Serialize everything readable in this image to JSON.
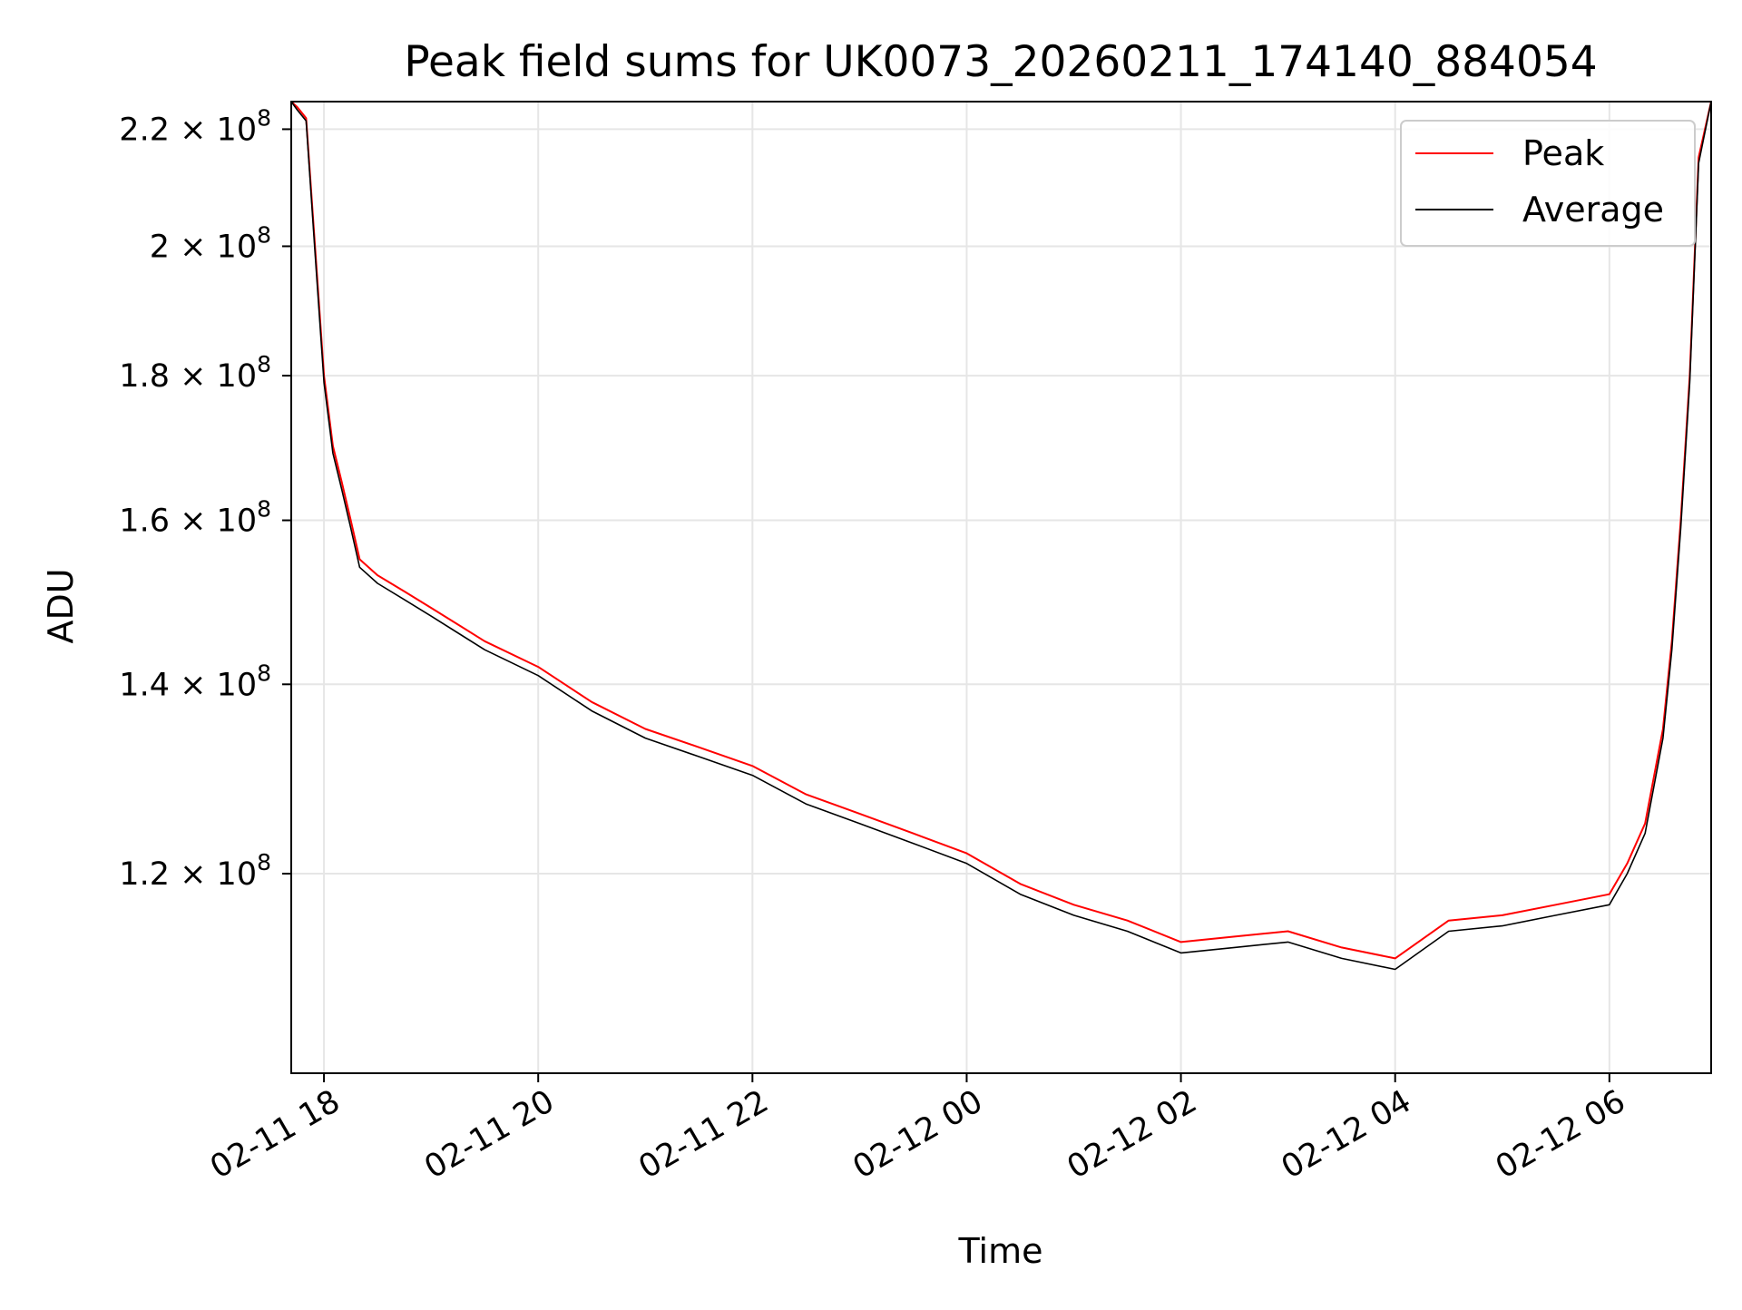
{
  "chart_data": {
    "type": "line",
    "title": "Peak field sums for UK0073_20260211_174140_884054",
    "xlabel": "Time",
    "ylabel": "ADU",
    "x_range": [
      "2026-02-11T17:41:40",
      "2026-02-12T06:57:00"
    ],
    "ylim": [
      102000000.0,
      225000000.0
    ],
    "yscale": "log",
    "grid": true,
    "legend_position": "top-right",
    "x_ticks": [
      {
        "value": "2026-02-11T18:00",
        "label": "02-11 18"
      },
      {
        "value": "2026-02-11T20:00",
        "label": "02-11 20"
      },
      {
        "value": "2026-02-11T22:00",
        "label": "02-11 22"
      },
      {
        "value": "2026-02-12T00:00",
        "label": "02-12 00"
      },
      {
        "value": "2026-02-12T02:00",
        "label": "02-12 02"
      },
      {
        "value": "2026-02-12T04:00",
        "label": "02-12 04"
      },
      {
        "value": "2026-02-12T06:00",
        "label": "02-12 06"
      }
    ],
    "y_ticks": [
      {
        "value": 120000000,
        "mantissa": "1.2",
        "exponent": "8"
      },
      {
        "value": 140000000,
        "mantissa": "1.4",
        "exponent": "8"
      },
      {
        "value": 160000000,
        "mantissa": "1.6",
        "exponent": "8"
      },
      {
        "value": 180000000,
        "mantissa": "1.8",
        "exponent": "8"
      },
      {
        "value": 200000000,
        "mantissa": "2",
        "exponent": "8"
      },
      {
        "value": 220000000,
        "mantissa": "2.2",
        "exponent": "8"
      }
    ],
    "x": [
      "2026-02-11T17:41:40",
      "2026-02-11T17:45",
      "2026-02-11T17:50",
      "2026-02-11T17:55",
      "2026-02-11T18:00",
      "2026-02-11T18:05",
      "2026-02-11T18:10",
      "2026-02-11T18:15",
      "2026-02-11T18:20",
      "2026-02-11T18:30",
      "2026-02-11T18:45",
      "2026-02-11T19:00",
      "2026-02-11T19:30",
      "2026-02-11T20:00",
      "2026-02-11T20:30",
      "2026-02-11T21:00",
      "2026-02-11T21:30",
      "2026-02-11T22:00",
      "2026-02-11T22:30",
      "2026-02-11T23:00",
      "2026-02-11T23:30",
      "2026-02-12T00:00",
      "2026-02-12T00:30",
      "2026-02-12T01:00",
      "2026-02-12T01:30",
      "2026-02-12T02:00",
      "2026-02-12T02:30",
      "2026-02-12T03:00",
      "2026-02-12T03:30",
      "2026-02-12T04:00",
      "2026-02-12T04:30",
      "2026-02-12T05:00",
      "2026-02-12T05:30",
      "2026-02-12T06:00",
      "2026-02-12T06:10",
      "2026-02-12T06:20",
      "2026-02-12T06:30",
      "2026-02-12T06:35",
      "2026-02-12T06:40",
      "2026-02-12T06:45",
      "2026-02-12T06:50",
      "2026-02-12T06:57"
    ],
    "series": [
      {
        "name": "Peak",
        "color": "#ff0000",
        "values": [
          226000000,
          224000000,
          222000000,
          200000000,
          180000000,
          170000000,
          165000000,
          160000000,
          155000000,
          153000000,
          151000000,
          149000000,
          145000000,
          142000000,
          138000000,
          135000000,
          133000000,
          131000000,
          128000000,
          126000000,
          124000000,
          122000000,
          119000000,
          117000000,
          115500000,
          113500000,
          114000000,
          114500000,
          113000000,
          112000000,
          115500000,
          116000000,
          117000000,
          118000000,
          121000000,
          125000000,
          135000000,
          145000000,
          160000000,
          180000000,
          215000000,
          226000000
        ]
      },
      {
        "name": "Average",
        "color": "#000000",
        "values": [
          225500000,
          223500000,
          221500000,
          199000000,
          179000000,
          169000000,
          164000000,
          159000000,
          154000000,
          152000000,
          150000000,
          148000000,
          144000000,
          141000000,
          137000000,
          134000000,
          132000000,
          130000000,
          127000000,
          125000000,
          123000000,
          121000000,
          118000000,
          116000000,
          114500000,
          112500000,
          113000000,
          113500000,
          112000000,
          111000000,
          114500000,
          115000000,
          116000000,
          117000000,
          120000000,
          124000000,
          134000000,
          144000000,
          159000000,
          179000000,
          214000000,
          225500000
        ]
      }
    ]
  }
}
